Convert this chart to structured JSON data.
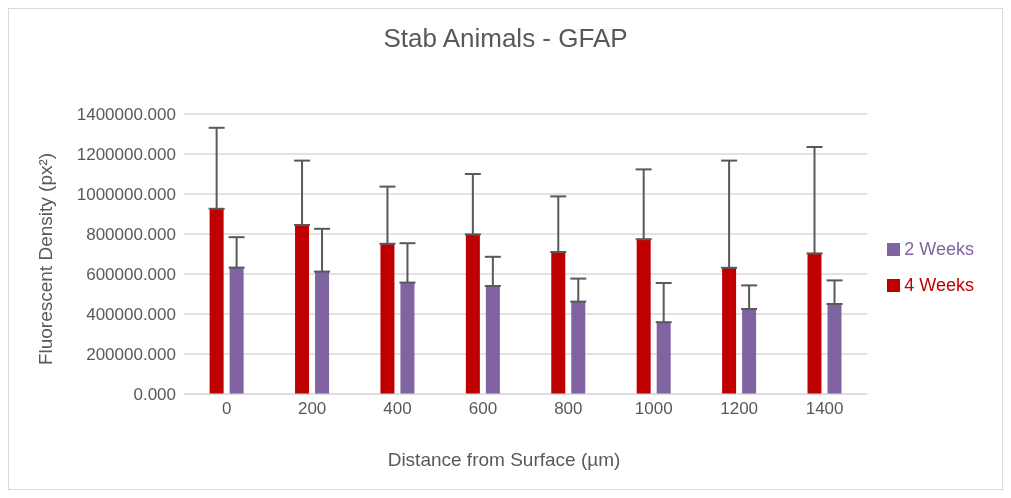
{
  "chart_data": {
    "type": "bar",
    "title": "Stab Animals - GFAP",
    "xlabel": "Distance from Surface (µm)",
    "ylabel": "Fluorescent Density (px²)",
    "categories": [
      "0",
      "200",
      "400",
      "600",
      "800",
      "1000",
      "1200",
      "1400"
    ],
    "series": [
      {
        "name": "4 Weeks",
        "color": "#c00000",
        "values": [
          926000,
          845000,
          751000,
          798000,
          710000,
          774000,
          631000,
          703000
        ],
        "errors": [
          [
            926000,
            1331000
          ],
          [
            845000,
            1167000
          ],
          [
            751000,
            1037000
          ],
          [
            798000,
            1100000
          ],
          [
            710000,
            988000
          ],
          [
            774000,
            1123000
          ],
          [
            631000,
            1167000
          ],
          [
            703000,
            1235000
          ]
        ]
      },
      {
        "name": "2 Weeks",
        "color": "#8064a2",
        "values": [
          632000,
          612000,
          557000,
          540000,
          462000,
          359000,
          425000,
          450000
        ],
        "errors": [
          [
            632000,
            784000
          ],
          [
            612000,
            826000
          ],
          [
            557000,
            754000
          ],
          [
            540000,
            686000
          ],
          [
            462000,
            577000
          ],
          [
            359000,
            555000
          ],
          [
            425000,
            543000
          ],
          [
            450000,
            568000
          ]
        ]
      }
    ],
    "ylim": [
      0,
      1400000
    ],
    "yticks": [
      {
        "value": 0,
        "label": "0.000"
      },
      {
        "value": 200000,
        "label": "200000.000"
      },
      {
        "value": 400000,
        "label": "400000.000"
      },
      {
        "value": 600000,
        "label": "600000.000"
      },
      {
        "value": 800000,
        "label": "800000.000"
      },
      {
        "value": 1000000,
        "label": "1000000.000"
      },
      {
        "value": 1200000,
        "label": "1200000.000"
      },
      {
        "value": 1400000,
        "label": "1400000.000"
      }
    ],
    "grid": "y",
    "legend": "right"
  }
}
